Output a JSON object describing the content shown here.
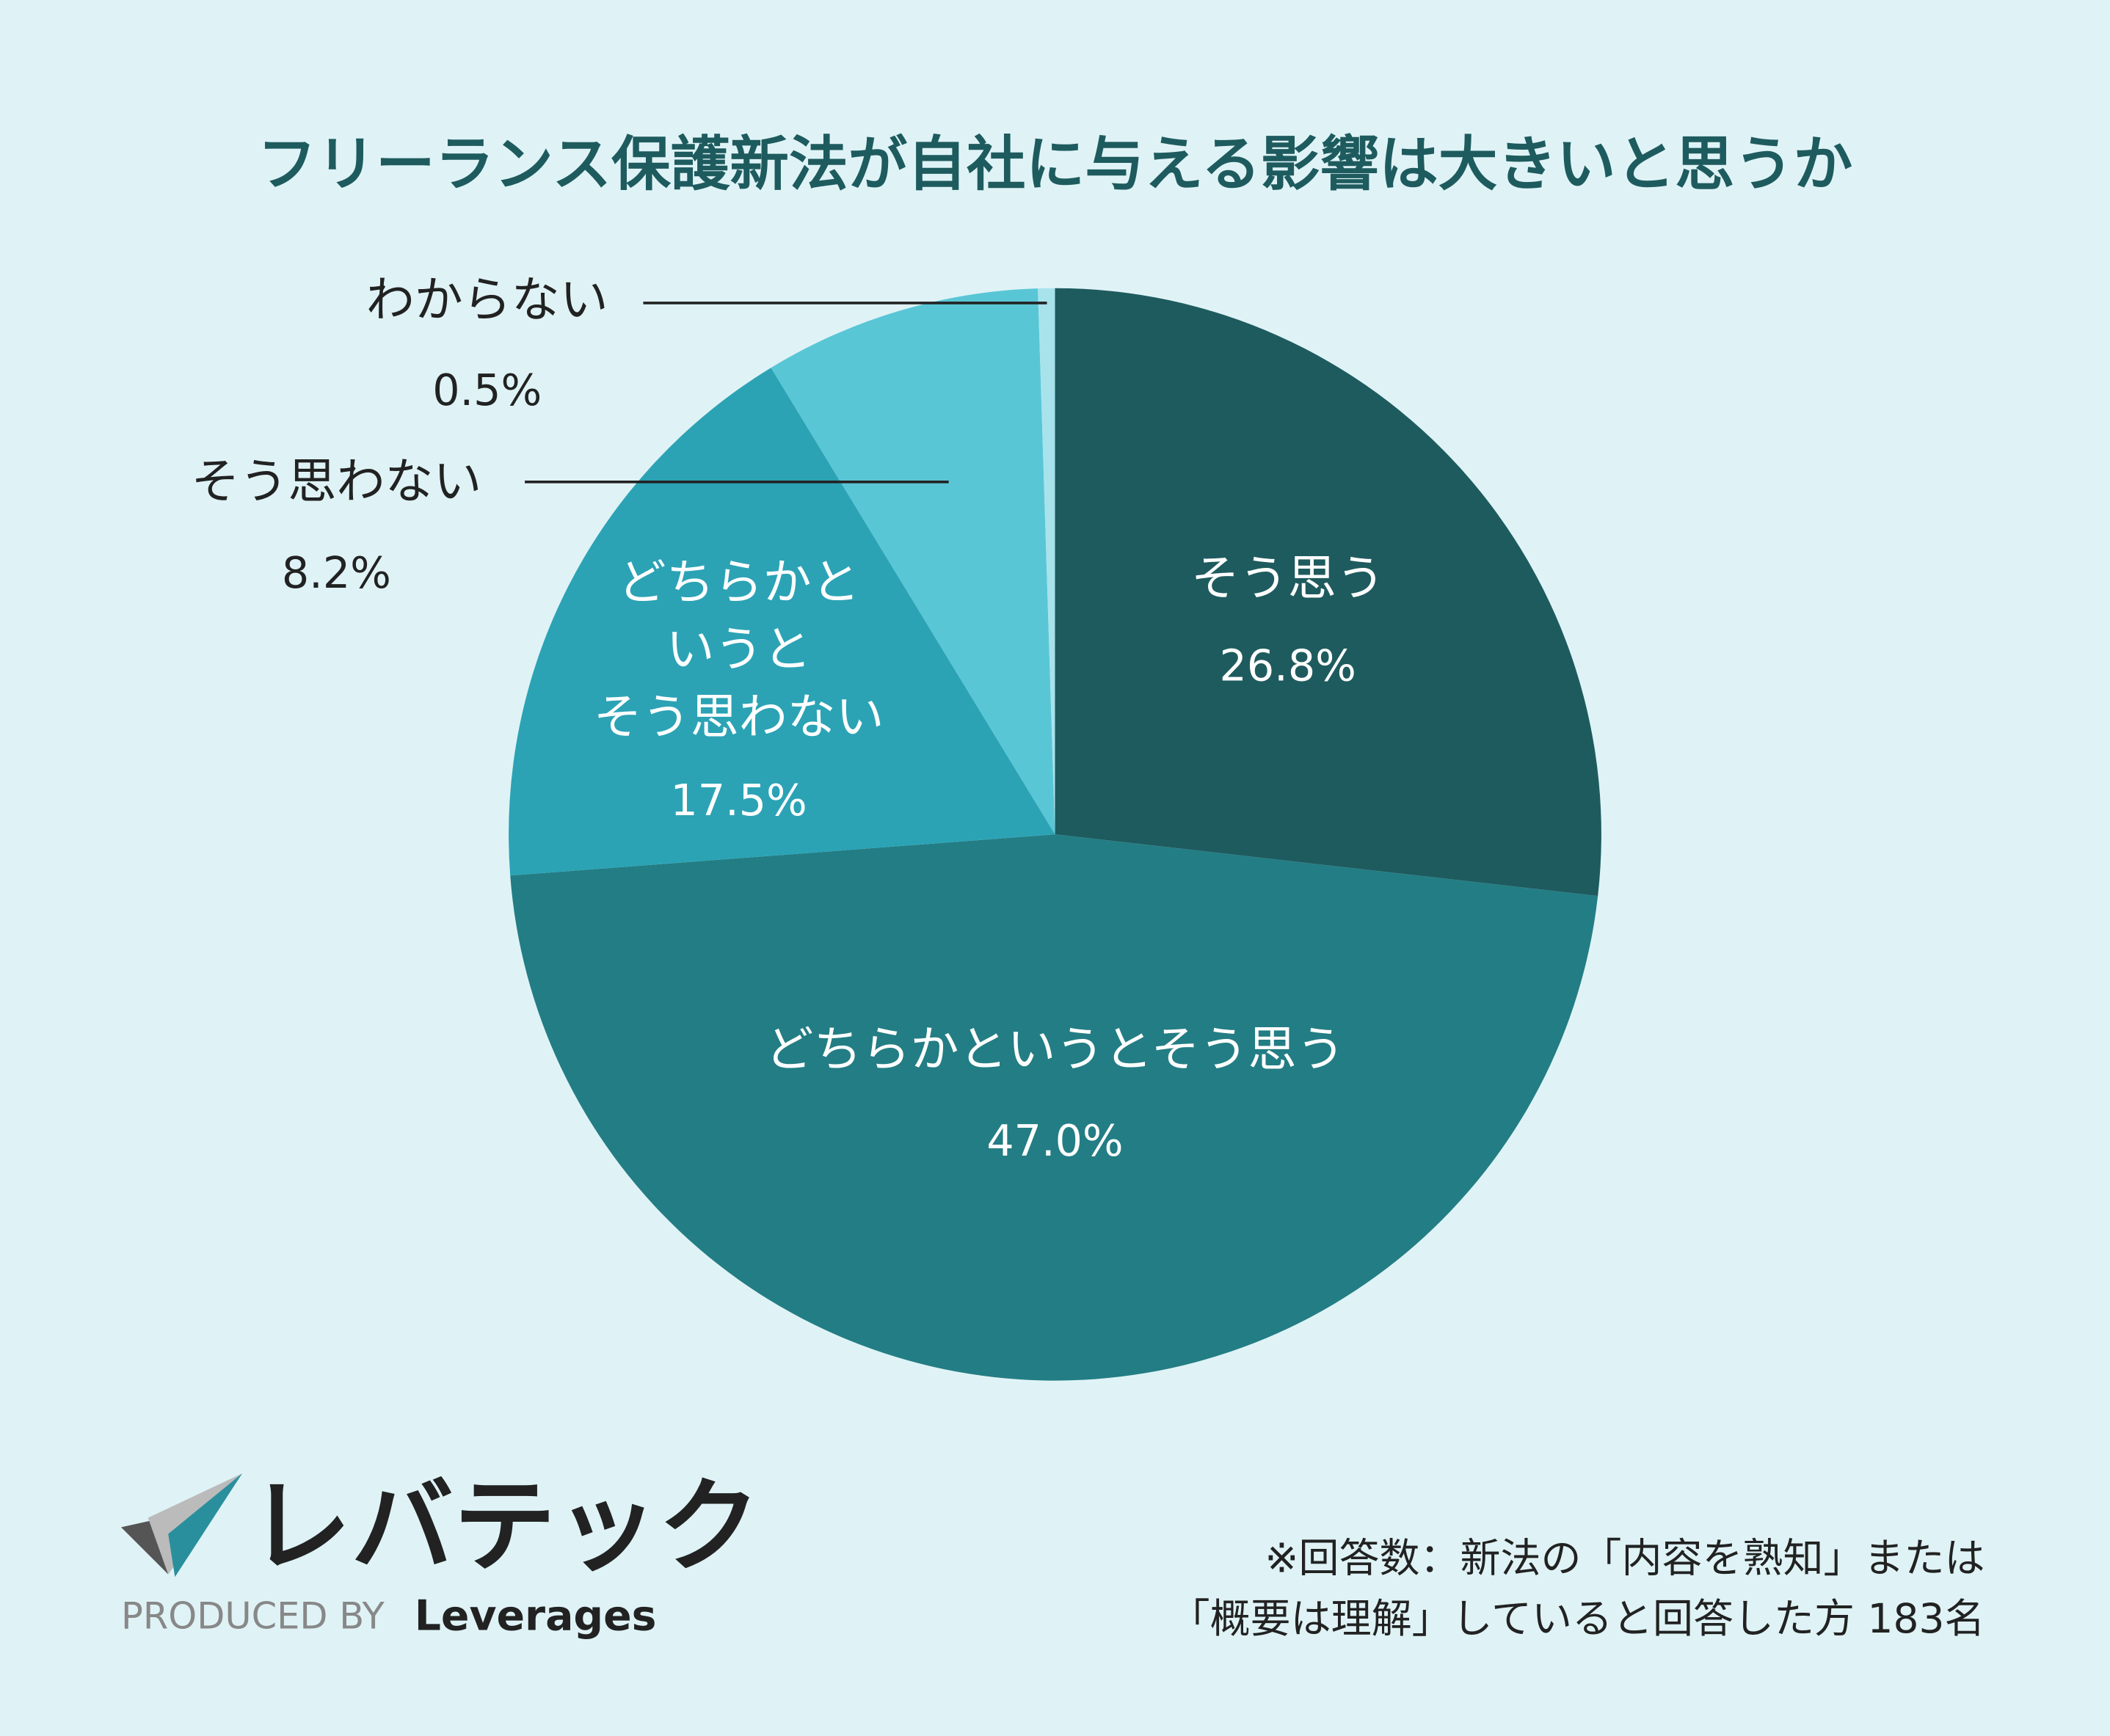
{
  "chart_data": {
    "type": "pie",
    "title": "フリーランス保護新法が自社に与える影響は大きいと思うか",
    "categories": [
      "そう思う",
      "どちらかというとそう思う",
      "どちらかと\nいうと\nそう思わない",
      "そう思わない",
      "わからない"
    ],
    "values": [
      26.8,
      47.0,
      17.5,
      8.2,
      0.5
    ],
    "value_labels": [
      "26.8%",
      "47.0%",
      "17.5%",
      "8.2%",
      "0.5%"
    ],
    "colors": [
      "#1e5b5e",
      "#237d84",
      "#2ba3b5",
      "#59c6d6",
      "#a8e3ec"
    ]
  },
  "logo": {
    "name": "レバテック",
    "produced": "PRODUCED BY",
    "company": "Leverages"
  },
  "note": [
    "※回答数：新法の「内容を熟知」または",
    "「概要は理解」していると回答した方 183名"
  ]
}
